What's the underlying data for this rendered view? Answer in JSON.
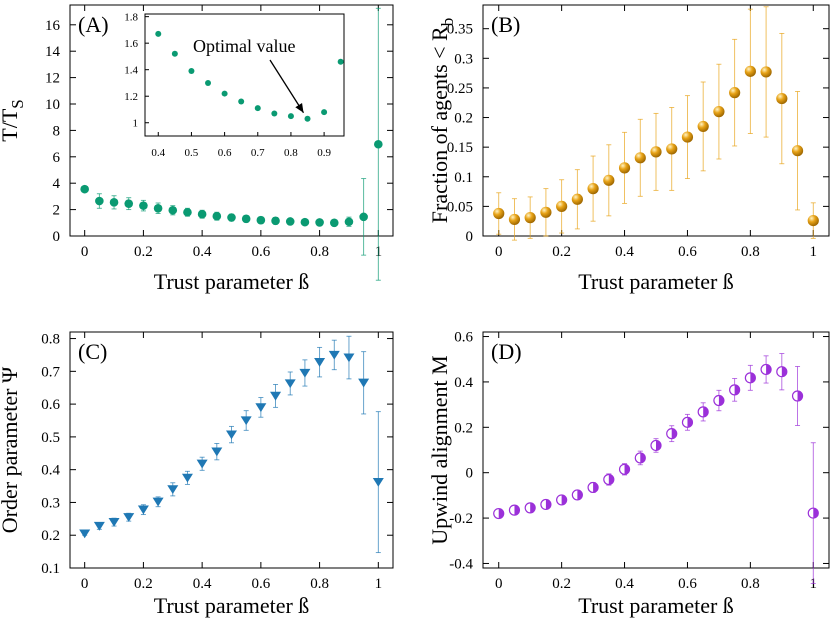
{
  "figure": {
    "xlabel": "Trust parameter ß"
  },
  "chart_data": [
    {
      "id": "A",
      "type": "scatter",
      "panel_label": "(A)",
      "ylabel_main": "T/T",
      "ylabel_sub": "S",
      "xlabel": "Trust parameter ß",
      "xlim": [
        -0.05,
        1.05
      ],
      "ylim": [
        0,
        17.5
      ],
      "xticks": [
        0,
        0.2,
        0.4,
        0.6,
        0.8,
        1
      ],
      "xtick_labels": [
        "0",
        "0.2",
        "0.4",
        "0.6",
        "0.8",
        "1"
      ],
      "yticks": [
        0,
        2,
        4,
        6,
        8,
        10,
        12,
        14,
        16
      ],
      "ytick_labels": [
        "0",
        "2",
        "4",
        "6",
        "8",
        "10",
        "12",
        "14",
        "16"
      ],
      "color": "#0a9a72",
      "marker": "circle",
      "x": [
        0,
        0.05,
        0.1,
        0.15,
        0.2,
        0.25,
        0.3,
        0.35,
        0.4,
        0.45,
        0.5,
        0.55,
        0.6,
        0.65,
        0.7,
        0.75,
        0.8,
        0.85,
        0.9,
        0.95,
        1
      ],
      "y": [
        3.55,
        2.65,
        2.55,
        2.45,
        2.3,
        2.1,
        1.95,
        1.8,
        1.65,
        1.5,
        1.4,
        1.3,
        1.2,
        1.15,
        1.1,
        1.05,
        1.03,
        1.0,
        1.08,
        1.45,
        6.95
      ],
      "err": [
        0,
        0.55,
        0.5,
        0.45,
        0.4,
        0.4,
        0.35,
        0.3,
        0.3,
        0.3,
        0.25,
        0.25,
        0.25,
        0.25,
        0.2,
        0.2,
        0.2,
        0.2,
        0.35,
        2.9,
        10.3
      ],
      "inset": {
        "xlim": [
          0.36,
          0.96
        ],
        "ylim": [
          0.9,
          1.82
        ],
        "xticks": [
          0.4,
          0.5,
          0.6,
          0.7,
          0.8,
          0.9
        ],
        "xtick_labels": [
          "0.4",
          "0.5",
          "0.6",
          "0.7",
          "0.8",
          "0.9"
        ],
        "yticks": [
          1,
          1.2,
          1.4,
          1.6,
          1.8
        ],
        "ytick_labels": [
          "1",
          "1.2",
          "1.4",
          "1.6",
          "1.8"
        ],
        "x": [
          0.4,
          0.45,
          0.5,
          0.55,
          0.6,
          0.65,
          0.7,
          0.75,
          0.8,
          0.85,
          0.9,
          0.95
        ],
        "y": [
          1.67,
          1.52,
          1.39,
          1.3,
          1.22,
          1.16,
          1.11,
          1.07,
          1.05,
          1.03,
          1.08,
          1.46
        ],
        "annotation": "Optimal value"
      }
    },
    {
      "id": "B",
      "type": "scatter",
      "panel_label": "(B)",
      "ylabel_main": "Fraction of agents < R",
      "ylabel_sub": "b",
      "xlabel": "Trust parameter ß",
      "xlim": [
        -0.05,
        1.05
      ],
      "ylim": [
        0,
        0.39
      ],
      "xticks": [
        0,
        0.2,
        0.4,
        0.6,
        0.8,
        1
      ],
      "xtick_labels": [
        "0",
        "0.2",
        "0.4",
        "0.6",
        "0.8",
        "1"
      ],
      "yticks": [
        0,
        0.05,
        0.1,
        0.15,
        0.2,
        0.25,
        0.3,
        0.35
      ],
      "ytick_labels": [
        "0",
        "0.05",
        "0.1",
        "0.15",
        "0.2",
        "0.25",
        "0.3",
        "0.35"
      ],
      "color": "#e8a317",
      "marker": "sphere",
      "x": [
        0,
        0.05,
        0.1,
        0.15,
        0.2,
        0.25,
        0.3,
        0.35,
        0.4,
        0.45,
        0.5,
        0.55,
        0.6,
        0.65,
        0.7,
        0.75,
        0.8,
        0.85,
        0.9,
        0.95,
        1
      ],
      "y": [
        0.038,
        0.028,
        0.031,
        0.04,
        0.05,
        0.062,
        0.08,
        0.094,
        0.115,
        0.132,
        0.142,
        0.147,
        0.167,
        0.185,
        0.21,
        0.242,
        0.278,
        0.277,
        0.232,
        0.144,
        0.026
      ],
      "err": [
        0.035,
        0.035,
        0.035,
        0.04,
        0.045,
        0.05,
        0.055,
        0.06,
        0.06,
        0.065,
        0.065,
        0.07,
        0.07,
        0.075,
        0.08,
        0.09,
        0.105,
        0.11,
        0.11,
        0.1,
        0.03
      ]
    },
    {
      "id": "C",
      "type": "scatter",
      "panel_label": "(C)",
      "ylabel_main": "Order parameter Ψ",
      "ylabel_sub": "",
      "xlabel": "Trust parameter ß",
      "xlim": [
        -0.05,
        1.05
      ],
      "ylim": [
        0.1,
        0.82
      ],
      "xticks": [
        0,
        0.2,
        0.4,
        0.6,
        0.8,
        1
      ],
      "xtick_labels": [
        "0",
        "0.2",
        "0.4",
        "0.6",
        "0.8",
        "1"
      ],
      "yticks": [
        0.1,
        0.2,
        0.3,
        0.4,
        0.5,
        0.6,
        0.7,
        0.8
      ],
      "ytick_labels": [
        "0.1",
        "0.2",
        "0.3",
        "0.4",
        "0.5",
        "0.6",
        "0.7",
        "0.8"
      ],
      "color": "#1f78b4",
      "marker": "triangle-down",
      "x": [
        0,
        0.05,
        0.1,
        0.15,
        0.2,
        0.25,
        0.3,
        0.35,
        0.4,
        0.45,
        0.5,
        0.55,
        0.6,
        0.65,
        0.7,
        0.75,
        0.8,
        0.85,
        0.9,
        0.95,
        1
      ],
      "y": [
        0.205,
        0.228,
        0.24,
        0.255,
        0.278,
        0.302,
        0.34,
        0.375,
        0.418,
        0.455,
        0.507,
        0.55,
        0.59,
        0.625,
        0.663,
        0.695,
        0.728,
        0.75,
        0.742,
        0.665,
        0.362
      ],
      "err": [
        0.005,
        0.01,
        0.012,
        0.012,
        0.015,
        0.015,
        0.02,
        0.02,
        0.02,
        0.025,
        0.025,
        0.03,
        0.03,
        0.035,
        0.035,
        0.04,
        0.045,
        0.045,
        0.065,
        0.095,
        0.215
      ]
    },
    {
      "id": "D",
      "type": "scatter",
      "panel_label": "(D)",
      "ylabel_main": "Upwind alignment M",
      "ylabel_sub": "",
      "xlabel": "Trust parameter ß",
      "xlim": [
        -0.05,
        1.05
      ],
      "ylim": [
        -0.42,
        0.62
      ],
      "xticks": [
        0,
        0.2,
        0.4,
        0.6,
        0.8,
        1
      ],
      "xtick_labels": [
        "0",
        "0.2",
        "0.4",
        "0.6",
        "0.8",
        "1"
      ],
      "yticks": [
        -0.4,
        -0.2,
        0,
        0.2,
        0.4,
        0.6
      ],
      "ytick_labels": [
        "-0.4",
        "-0.2",
        "0",
        "0.2",
        "0.4",
        "0.6"
      ],
      "color": "#9b30d9",
      "marker": "half-circle",
      "x": [
        0,
        0.05,
        0.1,
        0.15,
        0.2,
        0.25,
        0.3,
        0.35,
        0.4,
        0.45,
        0.5,
        0.55,
        0.6,
        0.65,
        0.7,
        0.75,
        0.8,
        0.85,
        0.9,
        0.95,
        1
      ],
      "y": [
        -0.18,
        -0.165,
        -0.155,
        -0.14,
        -0.12,
        -0.098,
        -0.065,
        -0.03,
        0.015,
        0.065,
        0.12,
        0.172,
        0.222,
        0.268,
        0.318,
        0.365,
        0.418,
        0.455,
        0.445,
        0.338,
        -0.178
      ],
      "err": [
        0.01,
        0.012,
        0.015,
        0.015,
        0.018,
        0.02,
        0.022,
        0.025,
        0.025,
        0.03,
        0.03,
        0.035,
        0.035,
        0.04,
        0.045,
        0.05,
        0.055,
        0.06,
        0.08,
        0.13,
        0.31
      ]
    }
  ]
}
